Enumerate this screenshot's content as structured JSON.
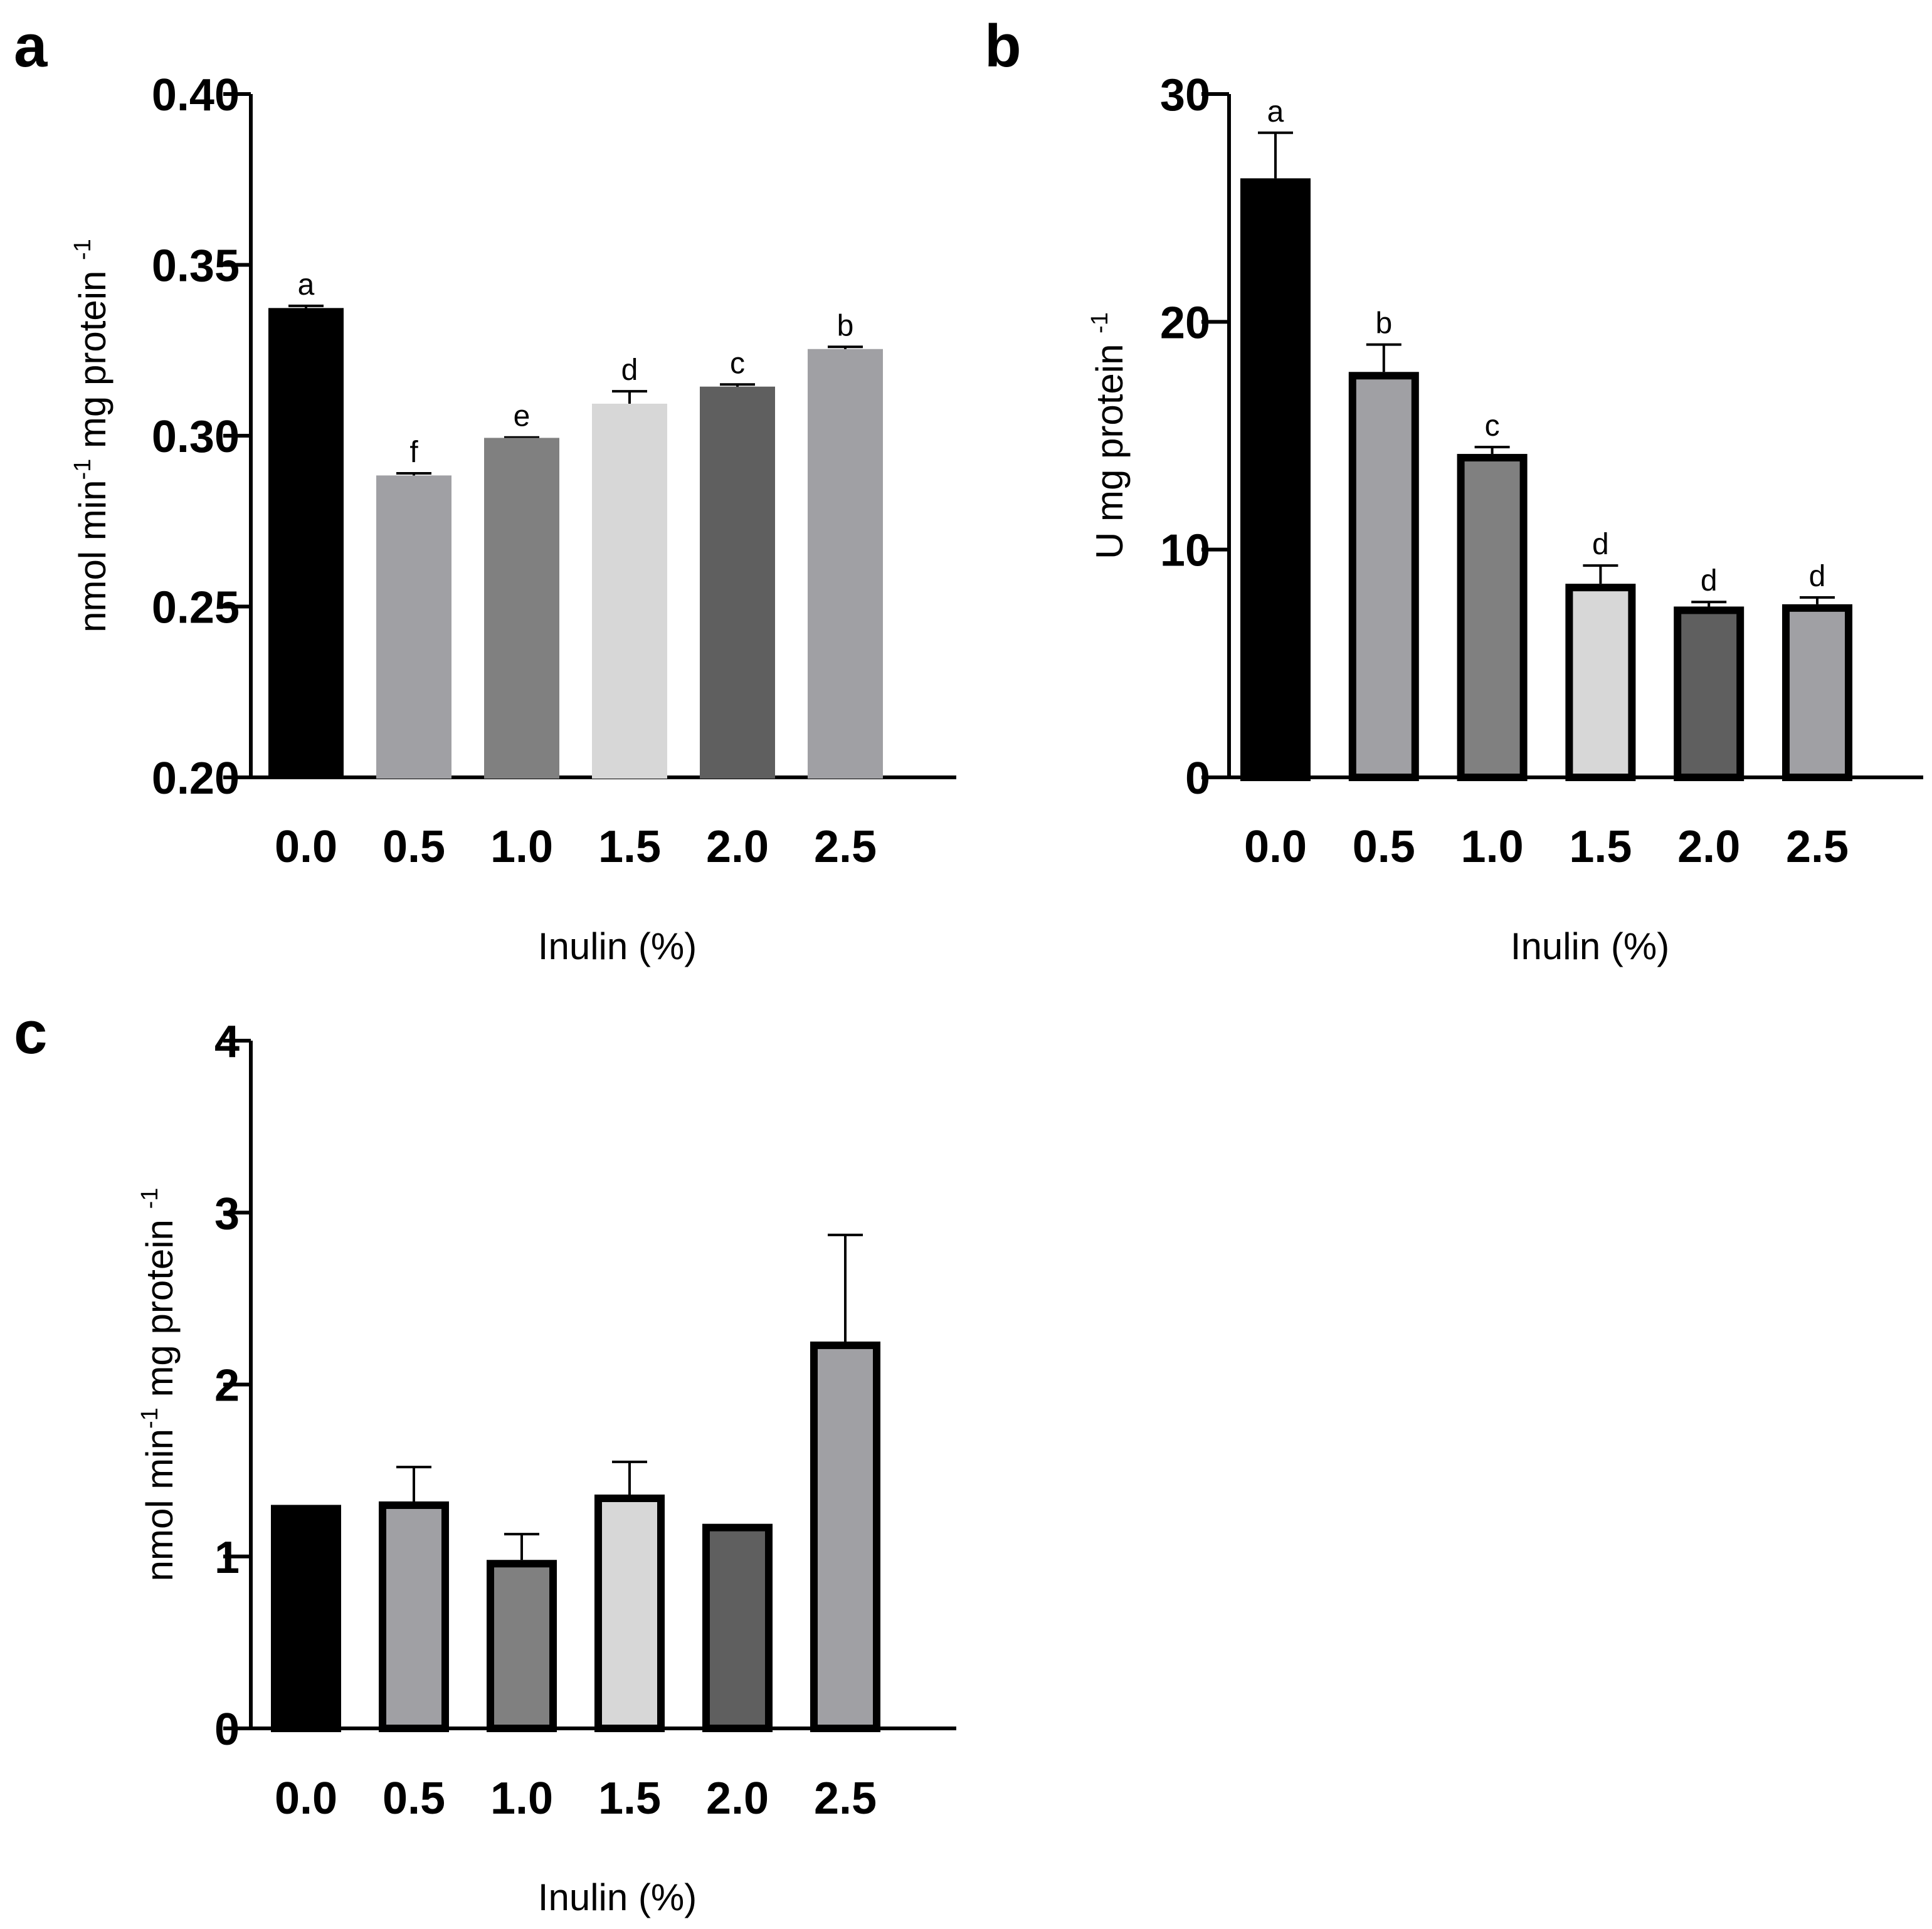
{
  "chart_data": [
    {
      "panel": "a",
      "type": "bar",
      "categories": [
        "0.0",
        "0.5",
        "1.0",
        "1.5",
        "2.0",
        "2.5"
      ],
      "values": [
        0.337,
        0.288,
        0.299,
        0.309,
        0.314,
        0.325
      ],
      "errors": [
        0.001,
        0.001,
        0.0005,
        0.004,
        0.001,
        0.001
      ],
      "significance": [
        "a",
        "f",
        "e",
        "d",
        "c",
        "b"
      ],
      "bar_colors": [
        "#000000",
        "#a0a0a4",
        "#808080",
        "#d7d7d7",
        "#5f5f5f",
        "#a0a0a4"
      ],
      "outlined": false,
      "yticks": [
        "0.20",
        "0.25",
        "0.30",
        "0.35",
        "0.40"
      ],
      "ylim": [
        0.2,
        0.4
      ],
      "ylabel": {
        "main": "nmol min",
        "sup1": "-1",
        "mid": " mg protein ",
        "sup2": "-1"
      },
      "xlabel": "Inulin (%)"
    },
    {
      "panel": "b",
      "type": "bar",
      "categories": [
        "0.0",
        "0.5",
        "1.0",
        "1.5",
        "2.0",
        "2.5"
      ],
      "values": [
        26.3,
        17.8,
        14.2,
        8.5,
        7.5,
        7.6
      ],
      "errors": [
        2.0,
        1.2,
        0.3,
        0.8,
        0.2,
        0.3
      ],
      "significance": [
        "a",
        "b",
        "c",
        "d",
        "d",
        "d"
      ],
      "bar_colors": [
        "#000000",
        "#a0a0a4",
        "#808080",
        "#d7d7d7",
        "#5f5f5f",
        "#a0a0a4"
      ],
      "outlined": true,
      "yticks": [
        "0",
        "10",
        "20",
        "30"
      ],
      "ylim": [
        0,
        30
      ],
      "ylabel": {
        "main": "U mg protein ",
        "sup1": "-1",
        "mid": "",
        "sup2": ""
      },
      "xlabel": "Inulin (%)"
    },
    {
      "panel": "c",
      "type": "bar",
      "categories": [
        "0.0",
        "0.5",
        "1.0",
        "1.5",
        "2.0",
        "2.5"
      ],
      "values": [
        1.3,
        1.32,
        0.98,
        1.36,
        1.19,
        2.25
      ],
      "errors": [
        0,
        0.2,
        0.15,
        0.19,
        0,
        0.62
      ],
      "significance": [],
      "bar_colors": [
        "#000000",
        "#a0a0a4",
        "#808080",
        "#d7d7d7",
        "#5f5f5f",
        "#a0a0a4"
      ],
      "outlined": true,
      "yticks": [
        "0",
        "1",
        "2",
        "3",
        "4"
      ],
      "ylim": [
        0,
        4
      ],
      "ylabel": {
        "main": "nmol min",
        "sup1": "-1",
        "mid": " mg protein ",
        "sup2": "-1"
      },
      "xlabel": "Inulin (%)"
    }
  ]
}
